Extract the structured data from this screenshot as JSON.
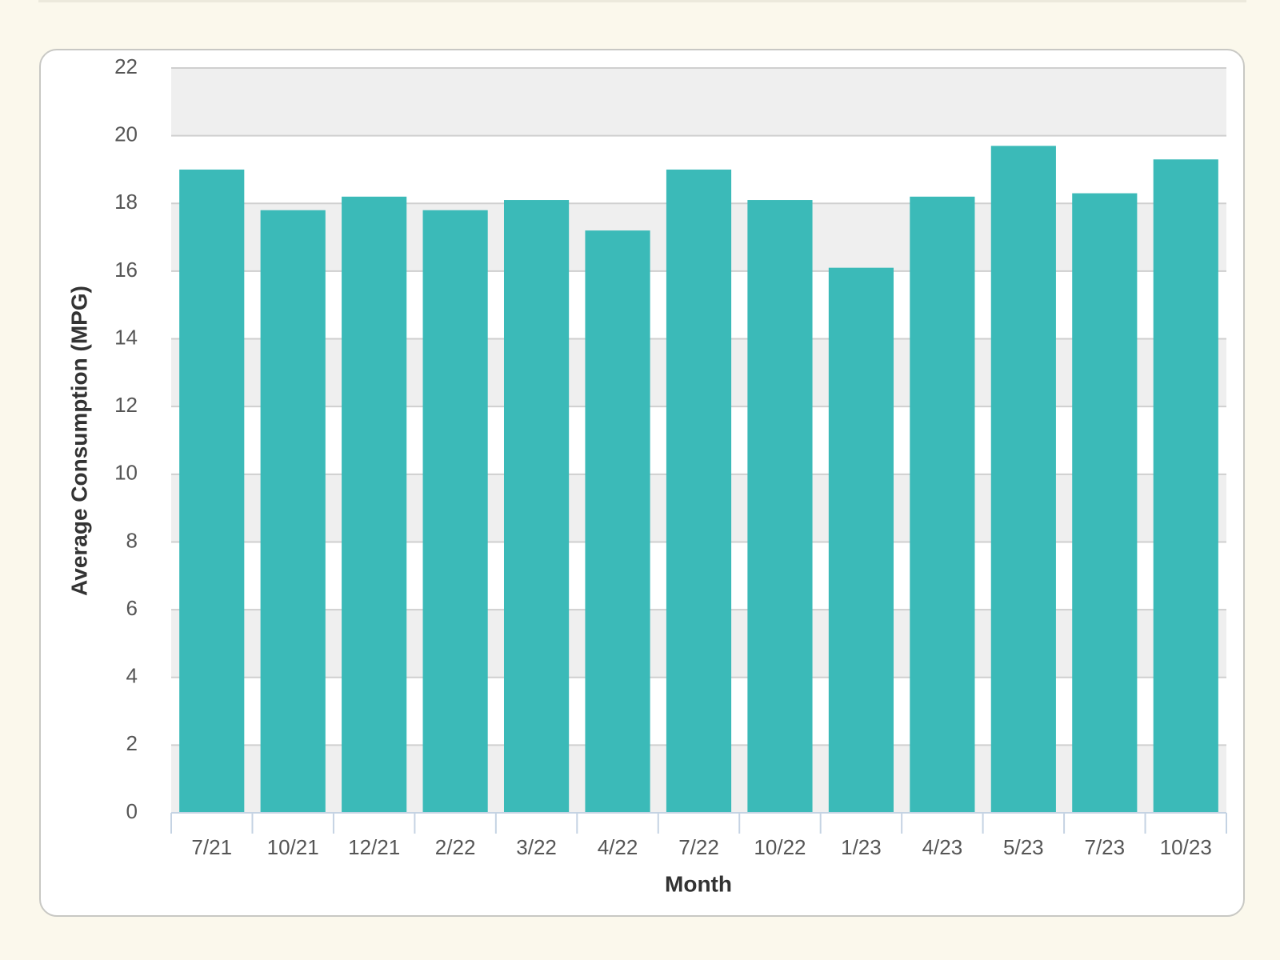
{
  "chart_data": {
    "type": "bar",
    "x_label": "Month",
    "y_label": "Average Consumption (MPG)",
    "categories": [
      "7/21",
      "10/21",
      "12/21",
      "2/22",
      "3/22",
      "4/22",
      "7/22",
      "10/22",
      "1/23",
      "4/23",
      "5/23",
      "7/23",
      "10/23"
    ],
    "values": [
      19.0,
      17.8,
      18.2,
      17.8,
      18.1,
      17.2,
      19.0,
      18.1,
      16.1,
      18.2,
      19.7,
      18.3,
      19.3
    ],
    "color": "#3bbab8",
    "ylim": [
      0,
      22
    ],
    "yticks": [
      0,
      2,
      4,
      6,
      8,
      10,
      12,
      14,
      16,
      18,
      20,
      22
    ],
    "grid": true
  }
}
